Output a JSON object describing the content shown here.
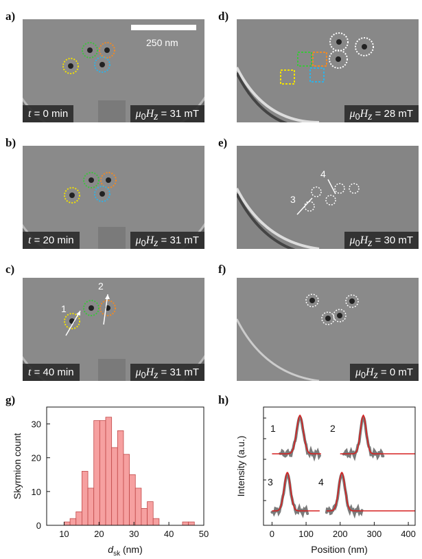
{
  "panels": [
    {
      "letter": "a)",
      "time": "t = 0 min",
      "field": "μ0Hz = 31 mT"
    },
    {
      "letter": "b)",
      "time": "t = 20 min",
      "field": "μ0Hz = 31 mT"
    },
    {
      "letter": "c)",
      "time": "t = 40 min",
      "field": "μ0Hz = 31 mT"
    },
    {
      "letter": "d)",
      "field": "μ0Hz = 28 mT"
    },
    {
      "letter": "e)",
      "field": "μ0Hz = 30 mT"
    },
    {
      "letter": "f)",
      "field": "μ0Hz = 0 mT"
    }
  ],
  "labels": {
    "time_a_pre": "t",
    "time_a_post": " = 0 min",
    "time_b_pre": "t",
    "time_b_post": " = 20 min",
    "time_c_pre": "t",
    "time_c_post": " = 40 min",
    "field_pre": "μ",
    "field_sub0": "0",
    "field_H": "H",
    "field_subz": "z",
    "field_a": " = 31 mT",
    "field_b": " = 31 mT",
    "field_c": " = 31 mT",
    "field_d": " = 28 mT",
    "field_e": " = 30 mT",
    "field_f": " = 0 mT",
    "scalebar": "250 nm",
    "arrow1": "1",
    "arrow2": "2",
    "arrow3": "3",
    "arrow4": "4"
  },
  "circle_colors": {
    "yellow": "#f2e200",
    "green": "#3cc43c",
    "orange": "#f08a24",
    "blue": "#2fb2e6",
    "white": "#ffffff"
  },
  "chart_data": [
    {
      "type": "bar",
      "panel": "g)",
      "xlabel_main": "d",
      "xlabel_sub": "sk",
      "xlabel_unit": " (nm)",
      "ylabel": "Skyrmion count",
      "xlim": [
        5,
        50
      ],
      "ylim": [
        0,
        35
      ],
      "xticks": [
        10,
        20,
        30,
        40,
        50
      ],
      "yticks": [
        0,
        10,
        20,
        30
      ],
      "bin_width": 1.7,
      "bins_start": [
        10.0,
        11.7,
        13.4,
        15.1,
        16.8,
        18.5,
        20.2,
        21.9,
        23.6,
        25.3,
        27.0,
        28.7,
        30.4,
        32.1,
        33.8,
        35.5,
        43.9,
        45.6
      ],
      "values": [
        1,
        2,
        4,
        16,
        11,
        31,
        31,
        32,
        23,
        28,
        21,
        15,
        11,
        5,
        7,
        2,
        1,
        1
      ],
      "bar_color": "#f6a0a0",
      "edge_color": "#c04848"
    },
    {
      "type": "line",
      "panel": "h)",
      "xlabel": "Position (nm)",
      "ylabel": "Intensity (a.u.)",
      "xlim": [
        -25,
        420
      ],
      "xticks": [
        0,
        100,
        200,
        300,
        400
      ],
      "profile_labels": [
        "1",
        "2",
        "3",
        "4"
      ],
      "fit_color": "#d62020",
      "data_color": "#7a7a7a",
      "series": [
        {
          "name": "1",
          "x_range": [
            0,
            145
          ],
          "center": 82,
          "width": 14,
          "baseline": "upper"
        },
        {
          "name": "2",
          "x_range": [
            200,
            420
          ],
          "center": 268,
          "width": 12,
          "baseline": "upper"
        },
        {
          "name": "3",
          "x_range": [
            0,
            140
          ],
          "center": 45,
          "width": 13,
          "baseline": "lower"
        },
        {
          "name": "4",
          "x_range": [
            160,
            420
          ],
          "center": 205,
          "width": 13,
          "baseline": "lower"
        }
      ]
    }
  ]
}
